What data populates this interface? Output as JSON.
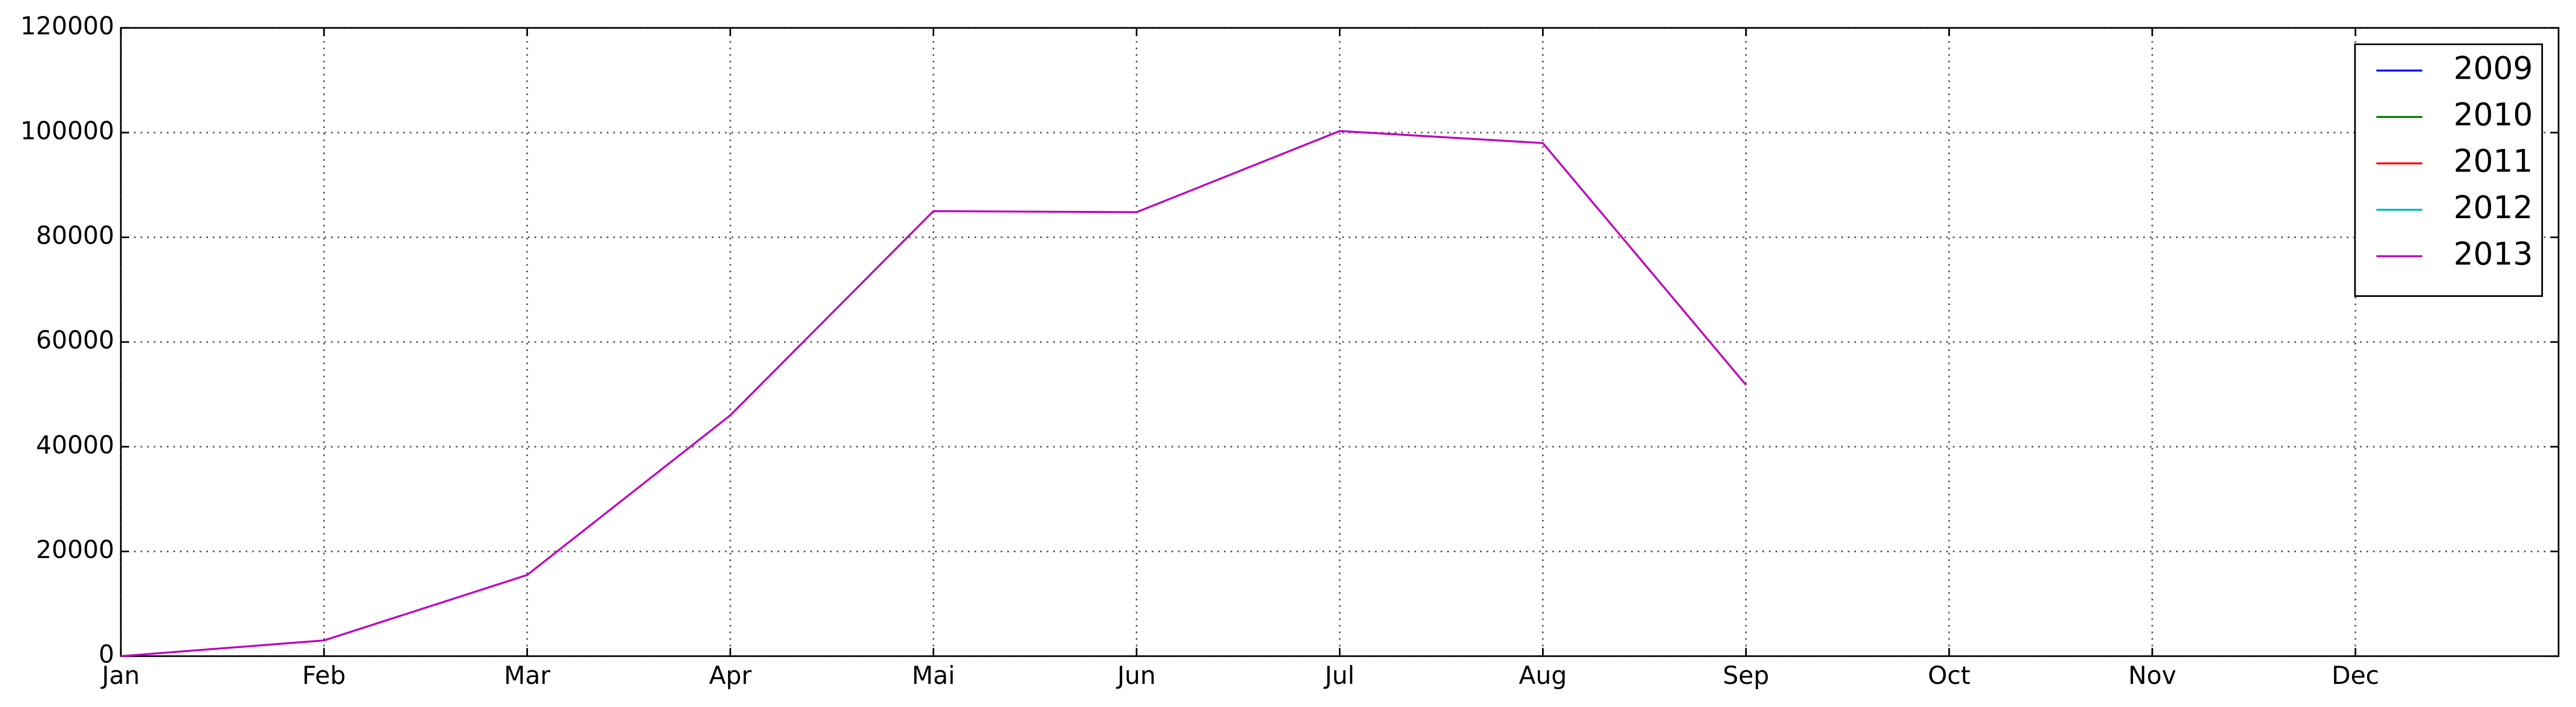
{
  "chart_data": {
    "type": "line",
    "categories": [
      "Jan",
      "Feb",
      "Mar",
      "Apr",
      "Mai",
      "Jun",
      "Jul",
      "Aug",
      "Sep",
      "Oct",
      "Nov",
      "Dec"
    ],
    "series": [
      {
        "name": "2009",
        "color": "#0000ff",
        "values": [
          null,
          null,
          null,
          null,
          null,
          null,
          null,
          null,
          null,
          null,
          null,
          null
        ]
      },
      {
        "name": "2010",
        "color": "#008000",
        "values": [
          null,
          null,
          null,
          null,
          null,
          null,
          null,
          null,
          null,
          null,
          null,
          null
        ]
      },
      {
        "name": "2011",
        "color": "#ff0000",
        "values": [
          null,
          null,
          null,
          null,
          null,
          null,
          null,
          null,
          null,
          null,
          null,
          null
        ]
      },
      {
        "name": "2012",
        "color": "#00bfbf",
        "values": [
          null,
          null,
          null,
          null,
          null,
          null,
          null,
          null,
          null,
          null,
          null,
          null
        ]
      },
      {
        "name": "2013",
        "color": "#bf00bf",
        "values": [
          0,
          3000,
          15500,
          46000,
          85000,
          84800,
          100300,
          98000,
          51800,
          null,
          null,
          null
        ]
      }
    ],
    "ylim": [
      0,
      120000
    ],
    "yticks": [
      0,
      20000,
      40000,
      60000,
      80000,
      100000,
      120000
    ],
    "grid": true,
    "legend": "upper right"
  }
}
